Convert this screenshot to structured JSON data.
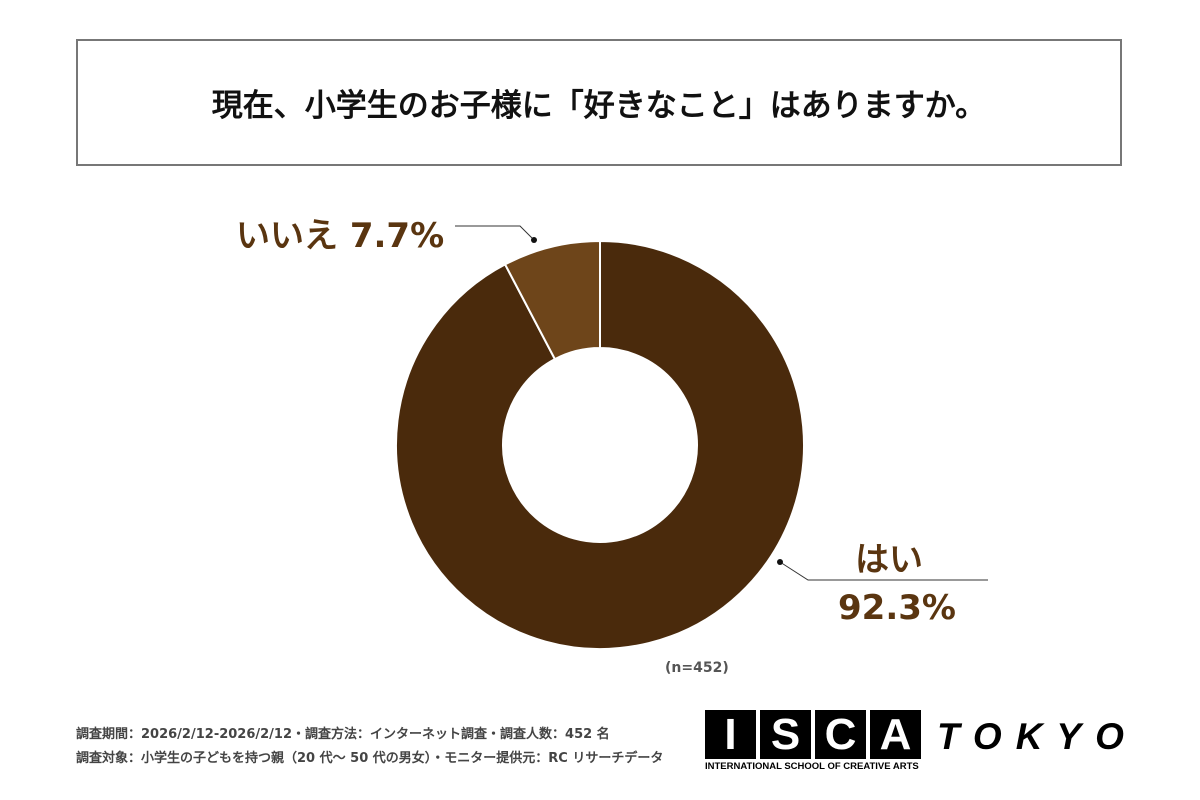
{
  "title": "現在、小学生のお子様に「好きなこと」はありますか。",
  "chart_data": {
    "type": "pie",
    "donut": true,
    "title": "現在、小学生のお子様に「好きなこと」はありますか。",
    "categories": [
      "はい",
      "いいえ"
    ],
    "values": [
      92.3,
      7.7
    ],
    "labels": [
      "92.3%",
      "7.7%"
    ],
    "colors": [
      "#4a2a0c",
      "#6e451a"
    ],
    "n_label": "(n=452)"
  },
  "footer": {
    "line1": "調査期間：2026/2/12-2026/2/12・調査方法：インターネット調査・調査人数：452 名",
    "line2": "調査対象：小学生の子どもを持つ親（20 代～ 50 代の男女）・モニター提供元：RC リサーチデータ"
  },
  "logo": {
    "letters": [
      "I",
      "S",
      "C",
      "A"
    ],
    "tokyo": "TOKYO",
    "subtitle": "INTERNATIONAL SCHOOL OF CREATIVE ARTS"
  }
}
